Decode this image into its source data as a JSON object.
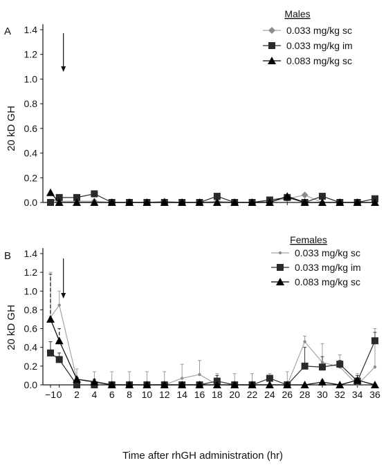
{
  "figure": {
    "xlabel": "Time after rhGH administration (hr)"
  },
  "chart_data": [
    {
      "type": "line",
      "panel_label": "A",
      "legend_title": "Males",
      "ylabel": "20 kD GH",
      "ylim": [
        0,
        1.4
      ],
      "yticks": [
        "0.0",
        "0.2",
        "0.4",
        "0.6",
        "0.8",
        "1.0",
        "1.2",
        "1.4"
      ],
      "xlim": [
        -1,
        36
      ],
      "x": [
        -1,
        0,
        2,
        4,
        6,
        8,
        10,
        12,
        14,
        16,
        18,
        20,
        22,
        24,
        26,
        28,
        30,
        32,
        34,
        36
      ],
      "arrow_at_x": 0,
      "series": [
        {
          "name": "0.033 mg/kg sc",
          "marker": "diamond",
          "color": "#8c8c8c",
          "values": [
            0.0,
            0.01,
            0.01,
            0.01,
            0.0,
            0.0,
            0.0,
            0.01,
            0.0,
            0.0,
            0.01,
            0.0,
            0.0,
            0.01,
            0.03,
            0.06,
            0.0,
            0.0,
            0.0,
            0.0
          ]
        },
        {
          "name": "0.033 mg/kg im",
          "marker": "square",
          "color": "#2a2a2a",
          "values": [
            0.0,
            0.04,
            0.04,
            0.07,
            0.0,
            0.0,
            0.0,
            0.0,
            0.0,
            0.0,
            0.05,
            0.0,
            0.0,
            0.02,
            0.04,
            0.0,
            0.05,
            0.0,
            0.0,
            0.03
          ]
        },
        {
          "name": "0.083 mg/kg sc",
          "marker": "triangle",
          "color": "#000000",
          "values": [
            0.08,
            0.0,
            0.0,
            0.0,
            0.0,
            0.0,
            0.0,
            0.0,
            0.0,
            0.0,
            0.0,
            0.0,
            0.0,
            0.0,
            0.05,
            0.0,
            0.0,
            0.0,
            0.0,
            0.0
          ]
        }
      ]
    },
    {
      "type": "line",
      "panel_label": "B",
      "legend_title": "Females",
      "ylabel": "20 kD GH",
      "ylim": [
        0,
        1.4
      ],
      "yticks": [
        "0.0",
        "0.2",
        "0.4",
        "0.6",
        "0.8",
        "1.0",
        "1.2",
        "1.4"
      ],
      "xlim": [
        -1,
        36
      ],
      "x": [
        -1,
        0,
        2,
        4,
        6,
        8,
        10,
        12,
        14,
        16,
        18,
        20,
        22,
        24,
        26,
        28,
        30,
        32,
        34,
        36
      ],
      "xticks": [
        "−1",
        "0",
        "2",
        "4",
        "6",
        "8",
        "10",
        "12",
        "14",
        "16",
        "18",
        "20",
        "22",
        "24",
        "26",
        "28",
        "30",
        "32",
        "34",
        "36"
      ],
      "arrow_at_x": 0,
      "series": [
        {
          "name": "0.033 mg/kg sc",
          "marker": "dot",
          "color": "#8c8c8c",
          "values": [
            0.72,
            0.85,
            0.06,
            0.04,
            0.0,
            0.0,
            0.0,
            0.0,
            0.07,
            0.11,
            0.0,
            0.0,
            0.0,
            0.0,
            0.0,
            0.46,
            0.24,
            0.19,
            0.0,
            0.19
          ],
          "error_upper": [
            1.2,
            1.0,
            0.17,
            0.14,
            0.14,
            0.14,
            0.14,
            0.14,
            0.22,
            0.26,
            0.12,
            0.12,
            0.12,
            0.12,
            0.14,
            0.52,
            0.44,
            0.32,
            0.12,
            0.6
          ]
        },
        {
          "name": "0.033 mg/kg im",
          "marker": "square",
          "color": "#2a2a2a",
          "values": [
            0.34,
            0.27,
            0.0,
            0.0,
            0.0,
            0.0,
            0.0,
            0.0,
            0.0,
            0.0,
            0.04,
            0.0,
            0.0,
            0.07,
            0.0,
            0.2,
            0.19,
            0.22,
            0.04,
            0.47
          ],
          "error_upper": [
            0.46,
            0.34,
            0.0,
            0.0,
            0.0,
            0.0,
            0.0,
            0.0,
            0.0,
            0.0,
            0.1,
            0.0,
            0.0,
            0.1,
            0.0,
            0.4,
            0.3,
            0.26,
            0.1,
            0.56
          ]
        },
        {
          "name": "0.083 mg/kg sc",
          "marker": "triangle",
          "color": "#000000",
          "values": [
            0.7,
            0.47,
            0.06,
            0.03,
            0.0,
            0.0,
            0.0,
            0.0,
            0.0,
            0.0,
            0.0,
            0.0,
            0.0,
            0.0,
            0.0,
            0.0,
            0.03,
            0.0,
            0.05,
            0.0
          ],
          "error_upper": [
            1.18,
            0.6,
            0.08,
            0.06,
            0.0,
            0.0,
            0.0,
            0.0,
            0.0,
            0.0,
            0.0,
            0.0,
            0.0,
            0.0,
            0.0,
            0.0,
            0.05,
            0.0,
            0.07,
            0.0
          ]
        }
      ]
    }
  ]
}
